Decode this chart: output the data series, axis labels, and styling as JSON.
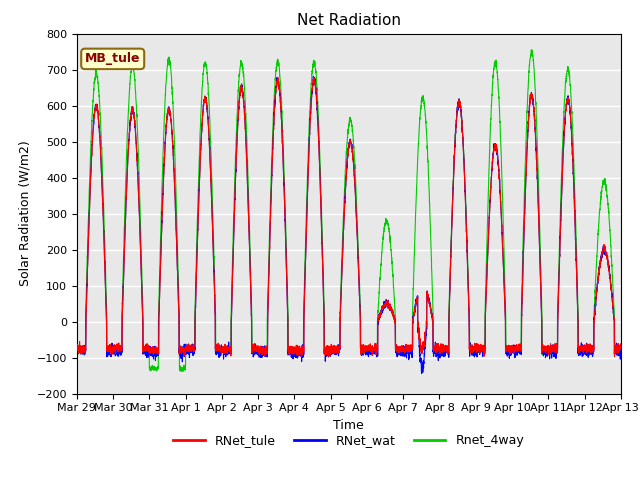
{
  "title": "Net Radiation",
  "xlabel": "Time",
  "ylabel": "Solar Radiation (W/m2)",
  "ylim": [
    -200,
    800
  ],
  "yticks": [
    -200,
    -100,
    0,
    100,
    200,
    300,
    400,
    500,
    600,
    700,
    800
  ],
  "annotation": "MB_tule",
  "annotation_color": "#8B0000",
  "annotation_bg": "#FFFFCC",
  "annotation_edge": "#8B6914",
  "line_colors": {
    "RNet_tule": "#FF0000",
    "RNet_wat": "#0000FF",
    "Rnet_4way": "#00CC00"
  },
  "line_widths": {
    "RNet_tule": 0.8,
    "RNet_wat": 0.8,
    "Rnet_4way": 0.8
  },
  "bg_color": "#E8E8E8",
  "fig_bg": "#FFFFFF",
  "grid_color": "#FFFFFF",
  "n_days": 15,
  "points_per_day": 288,
  "tick_labels": [
    "Mar 29",
    "Mar 30",
    "Mar 31",
    "Apr 1",
    "Apr 2",
    "Apr 3",
    "Apr 4",
    "Apr 5",
    "Apr 6",
    "Apr 7",
    "Apr 8",
    "Apr 9",
    "Apr 10",
    "Apr 11",
    "Apr 12",
    "Apr 13"
  ],
  "title_fontsize": 11,
  "label_fontsize": 9,
  "tick_fontsize": 8,
  "legend_fontsize": 9
}
